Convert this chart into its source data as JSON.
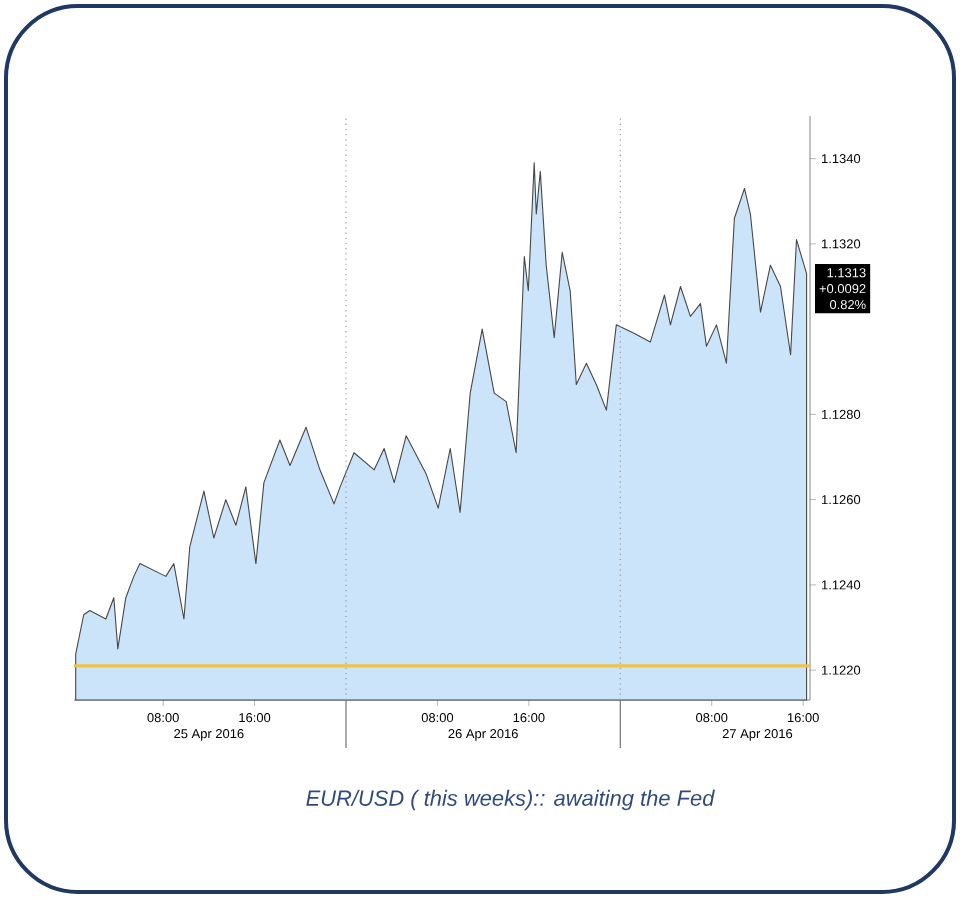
{
  "chart_data": {
    "type": "area",
    "x": [
      "2016-04-25T00:21",
      "2016-04-25T01:03",
      "2016-04-25T01:35",
      "2016-04-25T02:59",
      "2016-04-25T03:41",
      "2016-04-25T04:02",
      "2016-04-25T04:44",
      "2016-04-25T05:26",
      "2016-04-25T05:58",
      "2016-04-25T08:14",
      "2016-04-25T08:56",
      "2016-04-25T09:49",
      "2016-04-25T10:20",
      "2016-04-25T11:34",
      "2016-04-25T12:26",
      "2016-04-25T13:29",
      "2016-04-25T14:22",
      "2016-04-25T15:14",
      "2016-04-25T16:07",
      "2016-04-25T16:49",
      "2016-04-25T18:13",
      "2016-04-25T19:06",
      "2016-04-25T20:30",
      "2016-04-25T21:43",
      "2016-04-25T22:57",
      "2016-04-25T23:29",
      "2016-04-26T00:42",
      "2016-04-26T02:28",
      "2016-04-26T03:20",
      "2016-04-26T04:13",
      "2016-04-26T05:16",
      "2016-04-26T07:01",
      "2016-04-26T08:04",
      "2016-04-26T09:07",
      "2016-04-26T09:59",
      "2016-04-26T10:52",
      "2016-04-26T11:55",
      "2016-04-26T12:58",
      "2016-04-26T14:01",
      "2016-04-26T14:53",
      "2016-04-26T15:36",
      "2016-04-26T15:57",
      "2016-04-26T16:28",
      "2016-04-26T16:39",
      "2016-04-26T17:00",
      "2016-04-26T17:31",
      "2016-04-26T18:13",
      "2016-04-26T18:55",
      "2016-04-26T19:37",
      "2016-04-26T20:09",
      "2016-04-26T21:02",
      "2016-04-26T21:54",
      "2016-04-26T22:47",
      "2016-04-26T23:39",
      "2016-04-27T01:14",
      "2016-04-27T02:38",
      "2016-04-27T03:52",
      "2016-04-27T04:23",
      "2016-04-27T05:16",
      "2016-04-27T06:08",
      "2016-04-27T07:01",
      "2016-04-27T07:32",
      "2016-04-27T08:25",
      "2016-04-27T09:17",
      "2016-04-27T09:59",
      "2016-04-27T10:52",
      "2016-04-27T11:23",
      "2016-04-27T12:16",
      "2016-04-27T13:08",
      "2016-04-27T14:01",
      "2016-04-27T14:54",
      "2016-04-27T15:25",
      "2016-04-27T16:18"
    ],
    "series": [
      {
        "color": "#cce4fa",
        "values": [
          1.12238,
          1.1233,
          1.1234,
          1.1232,
          1.1237,
          1.1225,
          1.1237,
          1.1242,
          1.1245,
          1.1242,
          1.1245,
          1.1232,
          1.1249,
          1.1262,
          1.1251,
          1.126,
          1.1254,
          1.1263,
          1.1245,
          1.1264,
          1.1274,
          1.1268,
          1.1277,
          1.1267,
          1.1259,
          1.1263,
          1.1271,
          1.1267,
          1.1272,
          1.1264,
          1.1275,
          1.1266,
          1.1258,
          1.1272,
          1.1257,
          1.1285,
          1.13,
          1.1285,
          1.1283,
          1.1271,
          1.1317,
          1.1309,
          1.1339,
          1.1327,
          1.1337,
          1.1315,
          1.1298,
          1.1318,
          1.1309,
          1.1287,
          1.1292,
          1.1287,
          1.1281,
          1.1301,
          1.1299,
          1.1297,
          1.1308,
          1.1301,
          1.131,
          1.1303,
          1.1306,
          1.1296,
          1.1301,
          1.1292,
          1.1326,
          1.1333,
          1.1327,
          1.1304,
          1.1315,
          1.131,
          1.1294,
          1.1321,
          1.1313
        ]
      }
    ],
    "xlim": [
      "2016-04-25T00:12",
      "2016-04-27T16:36"
    ],
    "xticks": [
      {
        "value": "2016-04-25T08:00",
        "label": "08:00"
      },
      {
        "value": "2016-04-25T16:00",
        "label": "16:00"
      },
      {
        "value": "2016-04-26T08:00",
        "label": "08:00"
      },
      {
        "value": "2016-04-26T16:00",
        "label": "16:00"
      },
      {
        "value": "2016-04-27T08:00",
        "label": "08:00"
      },
      {
        "value": "2016-04-27T16:00",
        "label": "16:00"
      }
    ],
    "ylim": [
      1.1213,
      1.135
    ],
    "yticks": [
      {
        "value": 1.122,
        "label": "1.1220"
      },
      {
        "value": 1.124,
        "label": "1.1240"
      },
      {
        "value": 1.126,
        "label": "1.1260"
      },
      {
        "value": 1.128,
        "label": "1.1280"
      },
      {
        "value": 1.132,
        "label": "1.1320"
      },
      {
        "value": 1.134,
        "label": "1.1340"
      }
    ],
    "ref_lines": [
      {
        "axis": "x",
        "value": "2016-04-26T00:00",
        "color": "#9a9a9a",
        "line_style": "dotted"
      },
      {
        "axis": "x",
        "value": "2016-04-27T00:00",
        "color": "#9a9a9a",
        "line_style": "dotted"
      },
      {
        "axis": "y",
        "value": 1.1221,
        "color": "#f0c24a",
        "line_style": "solid"
      }
    ],
    "annotations": [
      "25 Apr 2016",
      "26 Apr 2016",
      "27 Apr 2016",
      {
        "text": "1.1313",
        "x": "2016-04-27T16:18",
        "y": 1.1313
      },
      "+0.0092",
      "0.82%",
      "EUR/USD ( this weeks):: awaiting the Fed"
    ]
  }
}
